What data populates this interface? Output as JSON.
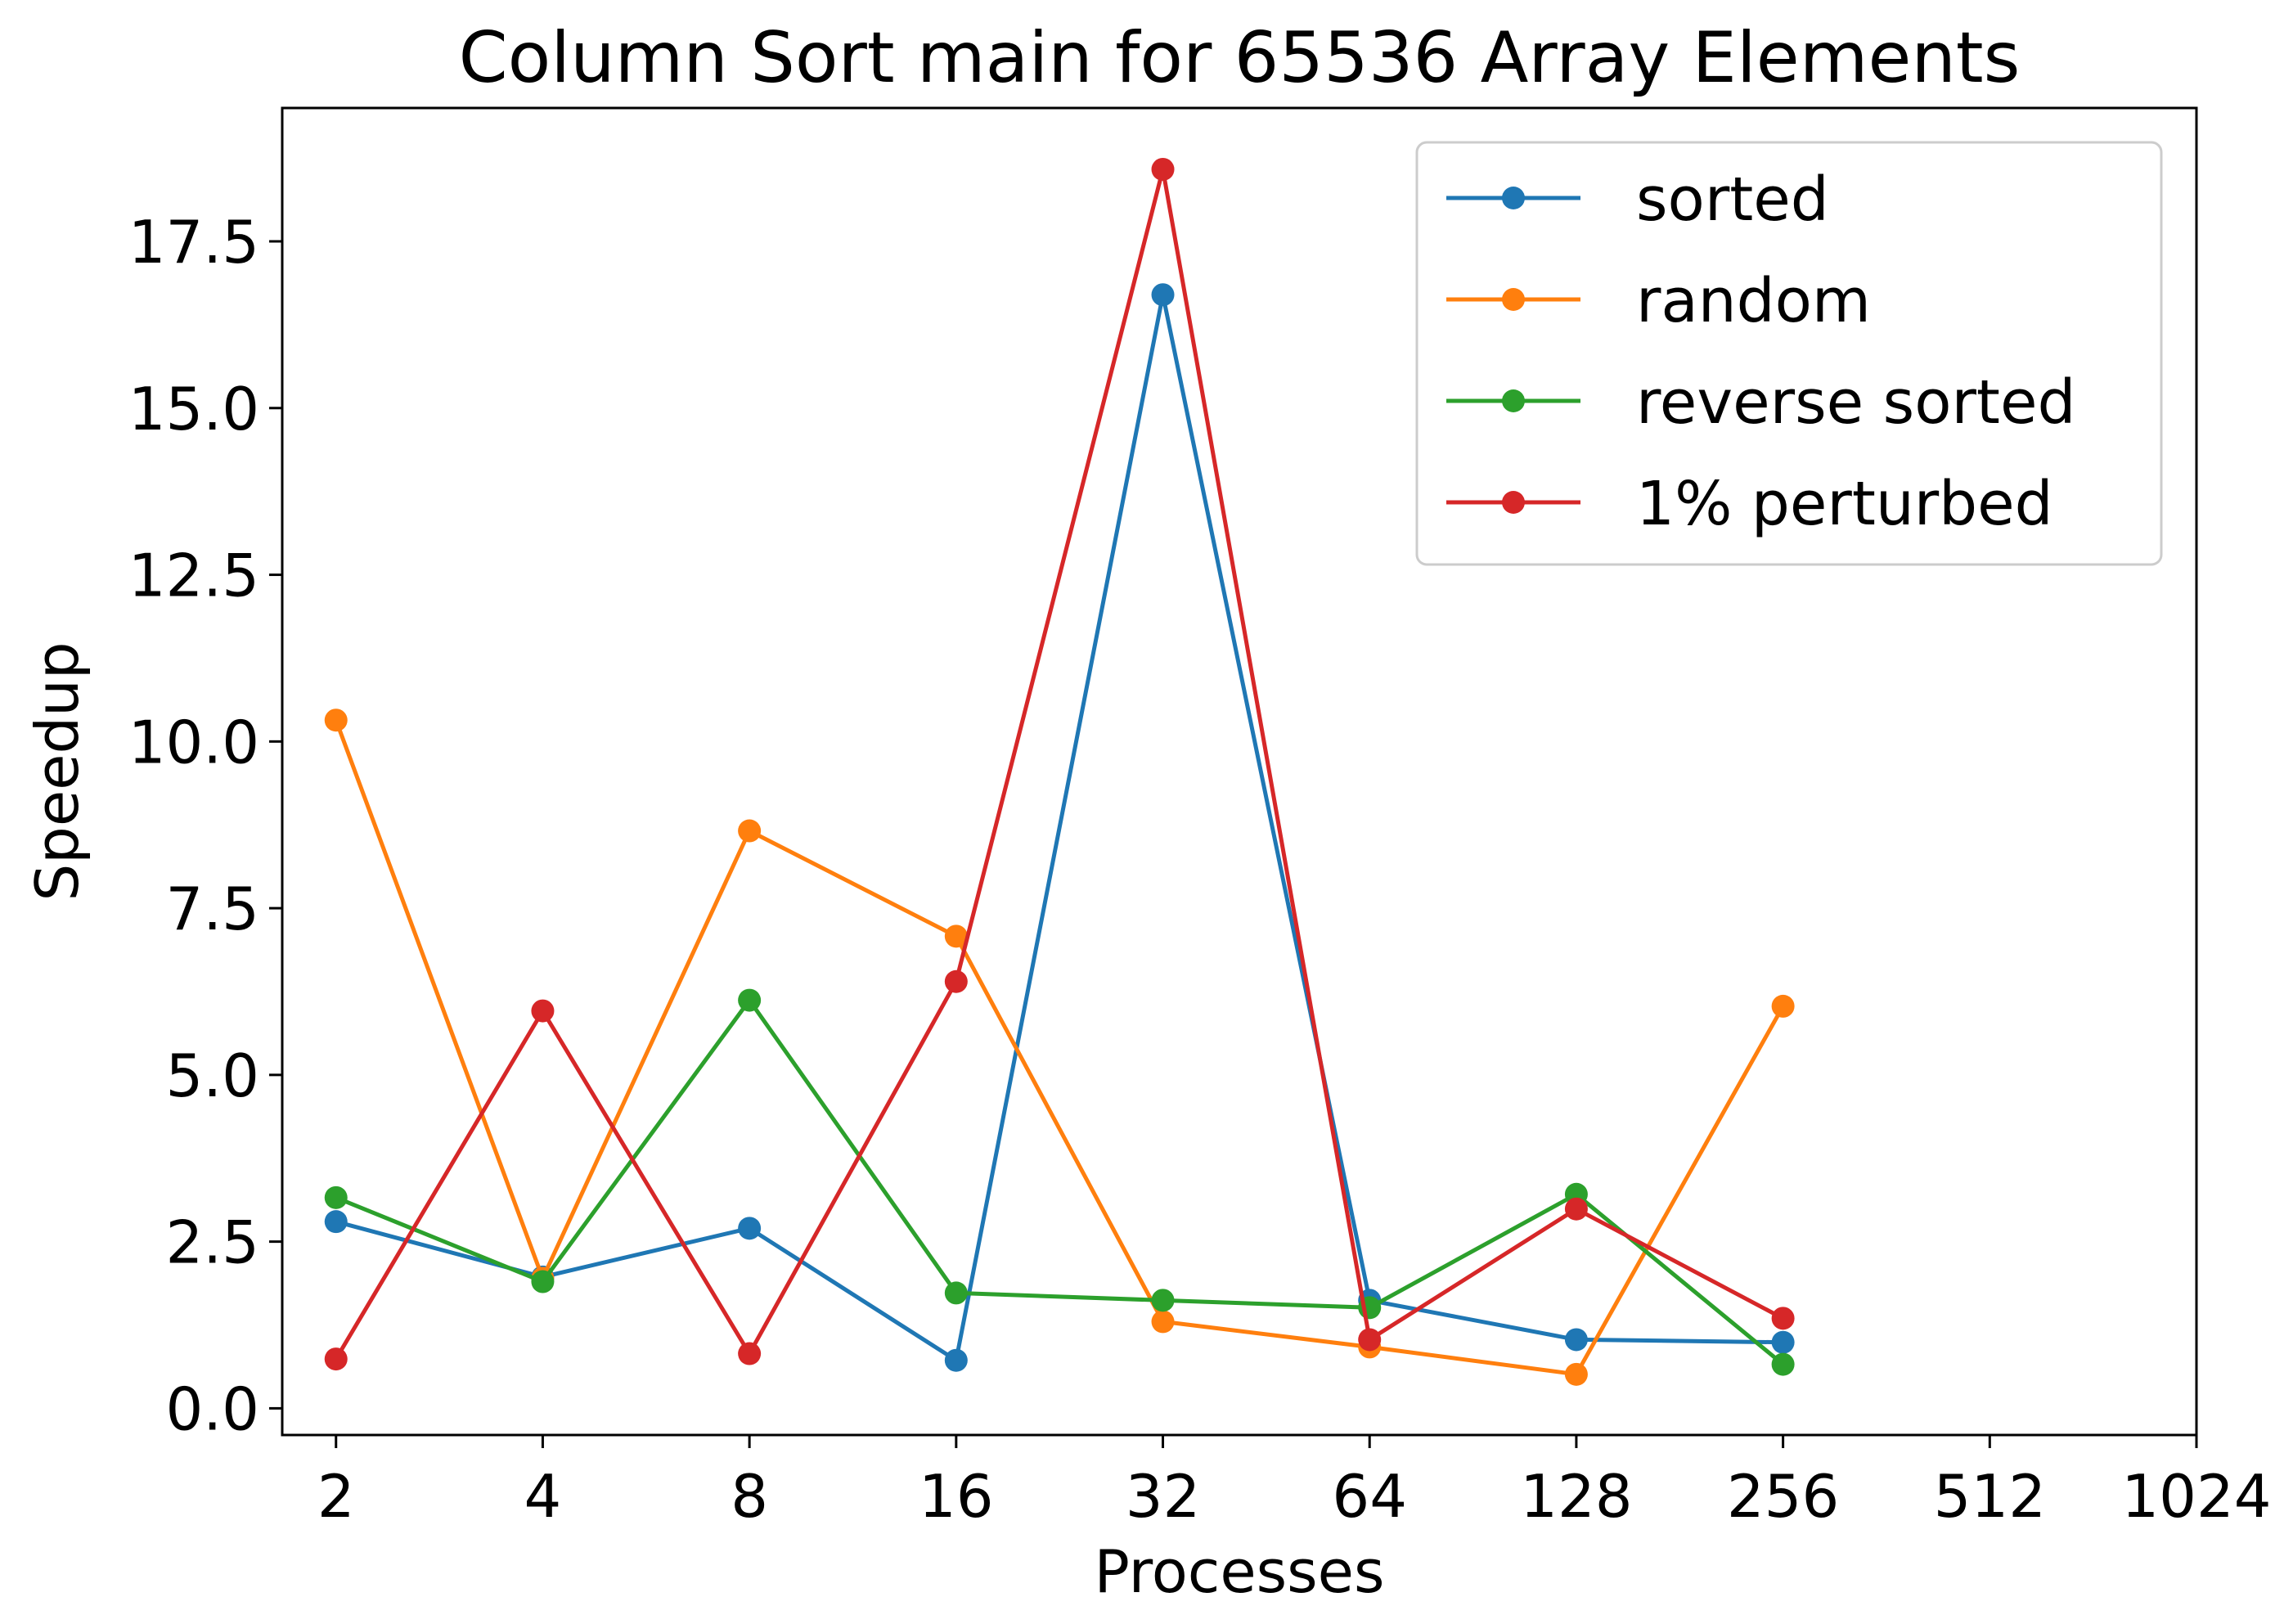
{
  "chart_data": {
    "type": "line",
    "title": "Column Sort main for 65536 Array Elements",
    "xlabel": "Processes",
    "ylabel": "Speedup",
    "x_scale": "log2",
    "x_ticks": [
      "2",
      "4",
      "8",
      "16",
      "32",
      "64",
      "128",
      "256",
      "512",
      "1024"
    ],
    "x_tick_values": [
      2,
      4,
      8,
      16,
      32,
      64,
      128,
      256,
      512,
      1024
    ],
    "xlim": [
      1.67,
      1024
    ],
    "y_ticks": [
      "0.0",
      "2.5",
      "5.0",
      "7.5",
      "10.0",
      "12.5",
      "15.0",
      "17.5"
    ],
    "y_tick_values": [
      0,
      2.5,
      5.0,
      7.5,
      10.0,
      12.5,
      15.0,
      17.5
    ],
    "ylim": [
      -0.4,
      19.5
    ],
    "grid": false,
    "legend_position": "top-right",
    "x": [
      2,
      4,
      8,
      16,
      32,
      64,
      128,
      256
    ],
    "series": [
      {
        "name": "sorted",
        "color": "#1f77b4",
        "values": [
          2.8,
          1.97,
          2.7,
          0.72,
          16.7,
          1.62,
          1.03,
          0.99
        ]
      },
      {
        "name": "random",
        "color": "#ff7f0e",
        "values": [
          10.32,
          1.95,
          8.66,
          7.08,
          1.3,
          0.92,
          0.51,
          6.03
        ]
      },
      {
        "name": "reverse sorted",
        "color": "#2ca02c",
        "values": [
          3.16,
          1.9,
          6.12,
          1.73,
          1.62,
          1.51,
          3.21,
          0.66
        ]
      },
      {
        "name": "1% perturbed",
        "color": "#d62728",
        "values": [
          0.74,
          5.96,
          0.82,
          6.4,
          18.58,
          1.03,
          2.99,
          1.35
        ]
      }
    ]
  }
}
